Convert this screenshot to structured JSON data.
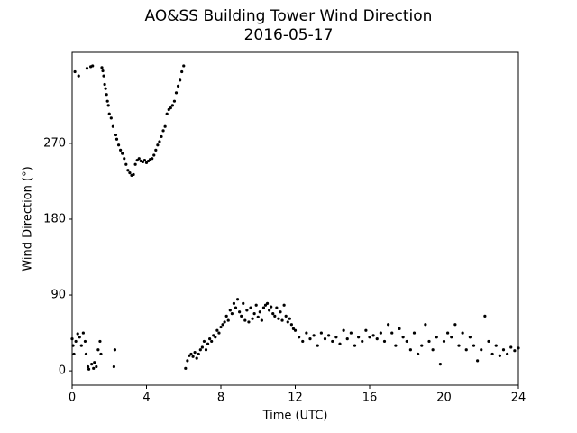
{
  "chart_data": {
    "type": "scatter",
    "title": "AO&SS Building Tower Wind Direction",
    "subtitle": "2016-05-17",
    "x_label": "Time (UTC)",
    "y_label": "Wind Direction (°)",
    "color": "#000000",
    "xlim": [
      0,
      24
    ],
    "xticks": [
      0,
      4,
      8,
      12,
      16,
      20,
      24
    ],
    "ylim": [
      -17,
      378
    ],
    "yticks": [
      0,
      90,
      180,
      270
    ],
    "x": [
      0.0,
      0.05,
      0.1,
      0.15,
      0.2,
      0.3,
      0.35,
      0.4,
      0.5,
      0.6,
      0.7,
      0.75,
      0.8,
      0.85,
      0.9,
      1.0,
      1.05,
      1.1,
      1.15,
      1.2,
      1.3,
      1.4,
      1.5,
      1.55,
      1.6,
      1.65,
      1.7,
      1.75,
      1.8,
      1.85,
      1.9,
      1.95,
      2.0,
      2.1,
      2.2,
      2.25,
      2.3,
      2.35,
      2.4,
      2.5,
      2.6,
      2.7,
      2.8,
      2.9,
      3.0,
      3.1,
      3.2,
      3.3,
      3.4,
      3.5,
      3.6,
      3.7,
      3.8,
      3.9,
      4.0,
      4.1,
      4.2,
      4.3,
      4.4,
      4.5,
      4.6,
      4.7,
      4.8,
      4.9,
      5.0,
      5.1,
      5.2,
      5.3,
      5.4,
      5.5,
      5.6,
      5.7,
      5.8,
      5.9,
      6.0,
      6.1,
      6.2,
      6.3,
      6.4,
      6.5,
      6.6,
      6.7,
      6.8,
      6.9,
      7.0,
      7.1,
      7.2,
      7.3,
      7.4,
      7.5,
      7.6,
      7.7,
      7.8,
      7.9,
      8.0,
      8.1,
      8.2,
      8.3,
      8.4,
      8.5,
      8.6,
      8.7,
      8.8,
      8.9,
      9.0,
      9.1,
      9.2,
      9.3,
      9.4,
      9.5,
      9.6,
      9.7,
      9.8,
      9.9,
      10.0,
      10.1,
      10.2,
      10.3,
      10.4,
      10.5,
      10.6,
      10.7,
      10.8,
      10.9,
      11.0,
      11.1,
      11.2,
      11.3,
      11.4,
      11.5,
      11.6,
      11.7,
      11.8,
      11.9,
      12.0,
      12.2,
      12.4,
      12.6,
      12.8,
      13.0,
      13.2,
      13.4,
      13.6,
      13.8,
      14.0,
      14.2,
      14.4,
      14.6,
      14.8,
      15.0,
      15.2,
      15.4,
      15.6,
      15.8,
      16.0,
      16.2,
      16.4,
      16.6,
      16.8,
      17.0,
      17.2,
      17.4,
      17.6,
      17.8,
      18.0,
      18.2,
      18.4,
      18.6,
      18.8,
      19.0,
      19.2,
      19.4,
      19.6,
      19.8,
      20.0,
      20.2,
      20.4,
      20.6,
      20.8,
      21.0,
      21.2,
      21.4,
      21.6,
      21.8,
      22.0,
      22.2,
      22.4,
      22.6,
      22.8,
      23.0,
      23.2,
      23.4,
      23.6,
      23.8,
      24.0
    ],
    "values": [
      38,
      30,
      20,
      355,
      35,
      44,
      350,
      40,
      30,
      45,
      35,
      20,
      359,
      5,
      2,
      361,
      8,
      362,
      3,
      10,
      5,
      25,
      35,
      20,
      360,
      356,
      350,
      340,
      335,
      328,
      320,
      315,
      305,
      300,
      290,
      5,
      25,
      280,
      275,
      268,
      262,
      258,
      252,
      245,
      238,
      235,
      232,
      233,
      245,
      250,
      252,
      249,
      248,
      250,
      247,
      249,
      251,
      252,
      256,
      262,
      268,
      272,
      278,
      285,
      290,
      305,
      310,
      312,
      315,
      320,
      330,
      338,
      345,
      355,
      362,
      3,
      12,
      18,
      20,
      17,
      22,
      15,
      20,
      25,
      28,
      35,
      25,
      32,
      38,
      35,
      42,
      40,
      48,
      45,
      52,
      55,
      58,
      65,
      60,
      72,
      68,
      80,
      75,
      85,
      70,
      65,
      80,
      60,
      72,
      58,
      75,
      62,
      68,
      78,
      64,
      70,
      60,
      75,
      78,
      80,
      72,
      76,
      68,
      65,
      75,
      62,
      70,
      60,
      78,
      65,
      58,
      62,
      55,
      50,
      48,
      40,
      35,
      45,
      38,
      42,
      30,
      45,
      38,
      42,
      35,
      40,
      32,
      48,
      38,
      45,
      30,
      40,
      35,
      48,
      40,
      42,
      38,
      45,
      35,
      55,
      45,
      30,
      50,
      40,
      35,
      25,
      45,
      20,
      30,
      55,
      35,
      25,
      40,
      8,
      35,
      45,
      40,
      55,
      30,
      45,
      25,
      40,
      30,
      12,
      25,
      65,
      35,
      20,
      30,
      18,
      25,
      20,
      28,
      24,
      27
    ]
  }
}
